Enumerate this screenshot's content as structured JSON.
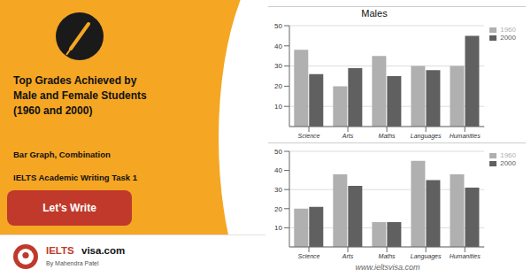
{
  "chart_data": [
    {
      "type": "bar",
      "title": "Males",
      "categories": [
        "Science",
        "Arts",
        "Maths",
        "Languages",
        "Humanities"
      ],
      "series": [
        {
          "name": "1960",
          "color": "#b0b0b0",
          "values": [
            38,
            20,
            35,
            30,
            30
          ]
        },
        {
          "name": "2000",
          "color": "#606060",
          "values": [
            26,
            29,
            25,
            28,
            45
          ]
        }
      ],
      "ylim": [
        0,
        50
      ],
      "yticks": [
        10,
        20,
        30,
        40,
        50
      ],
      "grid": true,
      "legend": "upper right",
      "annotations": [
        "Top Grades Achieved by\nMale and Female Students\n(1960 and 2000)",
        "Bar Graph, Combination",
        "IELTS Academic Writing Task 1",
        "Let’s Write",
        "IELTS",
        "visa.com",
        "By Mahendra Patel"
      ]
    },
    {
      "type": "bar",
      "categories": [
        "Science",
        "Arts",
        "Maths",
        "Languages",
        "Humanities"
      ],
      "series": [
        {
          "name": "1960",
          "color": "#b0b0b0",
          "values": [
            20,
            38,
            13,
            45,
            38
          ]
        },
        {
          "name": "2000",
          "color": "#606060",
          "values": [
            21,
            32,
            13,
            35,
            31
          ]
        }
      ],
      "ylim": [
        0,
        50
      ],
      "yticks": [
        10,
        20,
        30,
        40,
        50
      ],
      "grid": true,
      "legend": "upper right",
      "annotations": [
        "www.ieltsvisa.com"
      ]
    }
  ]
}
